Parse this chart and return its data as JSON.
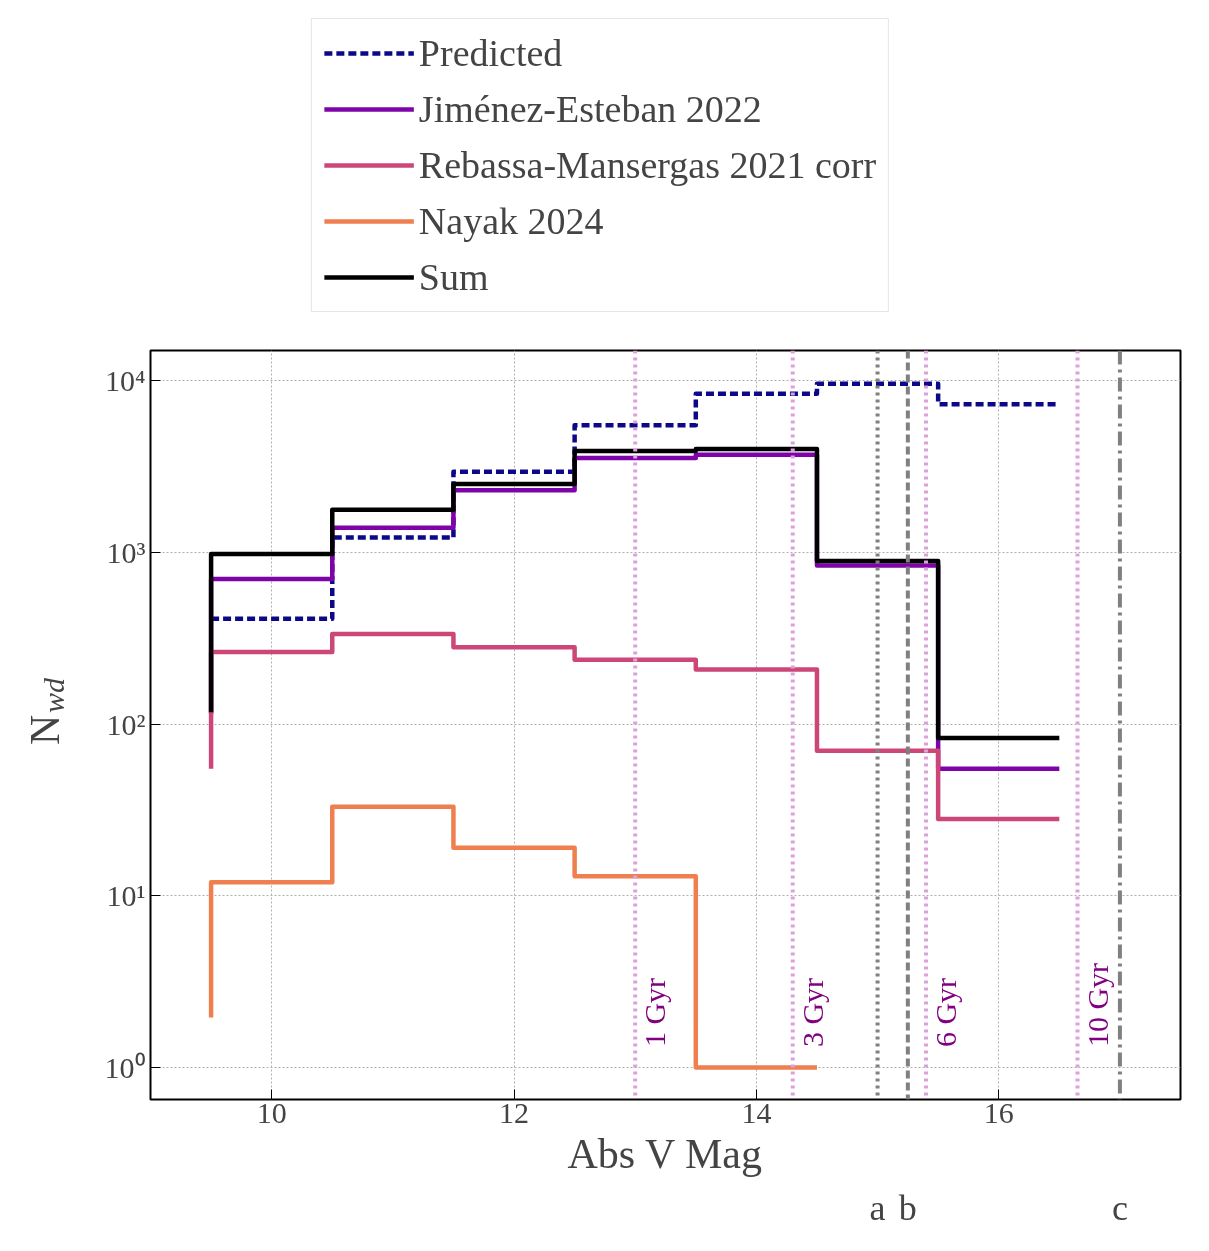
{
  "chart_data": {
    "type": "step",
    "xlabel": "Abs V Mag",
    "ylabel": "N$_{wd}$",
    "x": [
      9.5,
      10.5,
      11.5,
      12.5,
      13.5,
      14.5,
      15.5,
      16.5
    ],
    "series": [
      {
        "name": "Predicted",
        "color": "#0d0887",
        "line_style": "dashed",
        "values": [
          410,
          410,
          1220,
          2950,
          5500,
          8400,
          9600,
          7300
        ]
      },
      {
        "name": "Jiménez-Esteban 2022",
        "color": "#7e03a8",
        "values": [
          115,
          700,
          1390,
          2300,
          3550,
          3700,
          840,
          55
        ]
      },
      {
        "name": "Rebassa-Mansergas 2021 corr",
        "color": "#cc4778",
        "values": [
          55,
          263,
          335,
          280,
          237,
          208,
          70,
          28
        ]
      },
      {
        "name": "Nayak 2024",
        "color": "#f07f4f",
        "values": [
          1.95,
          12,
          33,
          19,
          13,
          1.0,
          null,
          null
        ]
      },
      {
        "name": "Sum",
        "color": "#000000",
        "values": [
          117,
          980,
          1770,
          2500,
          3900,
          4000,
          890,
          83
        ]
      }
    ],
    "xlim": [
      9.0,
      17.5
    ],
    "ylim": [
      0.65,
      15000
    ],
    "log": "y",
    "xticks": [
      10,
      12,
      14,
      16
    ],
    "yticks": [
      {
        "value": 1,
        "label": "10⁰"
      },
      {
        "value": 10,
        "label": "10¹"
      },
      {
        "value": 100,
        "label": "10²"
      },
      {
        "value": 1000,
        "label": "10³"
      },
      {
        "value": 10000,
        "label": "10⁴"
      }
    ],
    "ref_lines": [
      {
        "axis": "x",
        "value": 13.0,
        "label": "1 Gyr",
        "color": "#dda0dd",
        "line_style": "dotted"
      },
      {
        "axis": "x",
        "value": 14.3,
        "label": "3 Gyr",
        "color": "#dda0dd",
        "line_style": "dotted"
      },
      {
        "axis": "x",
        "value": 15.4,
        "label": "6 Gyr",
        "color": "#dda0dd",
        "line_style": "dotted"
      },
      {
        "axis": "x",
        "value": 16.65,
        "label": "10 Gyr",
        "color": "#dda0dd",
        "line_style": "dotted"
      },
      {
        "axis": "x",
        "value": 15.0,
        "label": "a",
        "color": "#808080",
        "line_style": "dotted"
      },
      {
        "axis": "x",
        "value": 15.25,
        "label": "b",
        "color": "#808080",
        "line_style": "dashed"
      },
      {
        "axis": "x",
        "value": 17.0,
        "label": "c",
        "color": "#808080",
        "line_style": "dashdot"
      }
    ],
    "grid": true,
    "legend": "top"
  }
}
